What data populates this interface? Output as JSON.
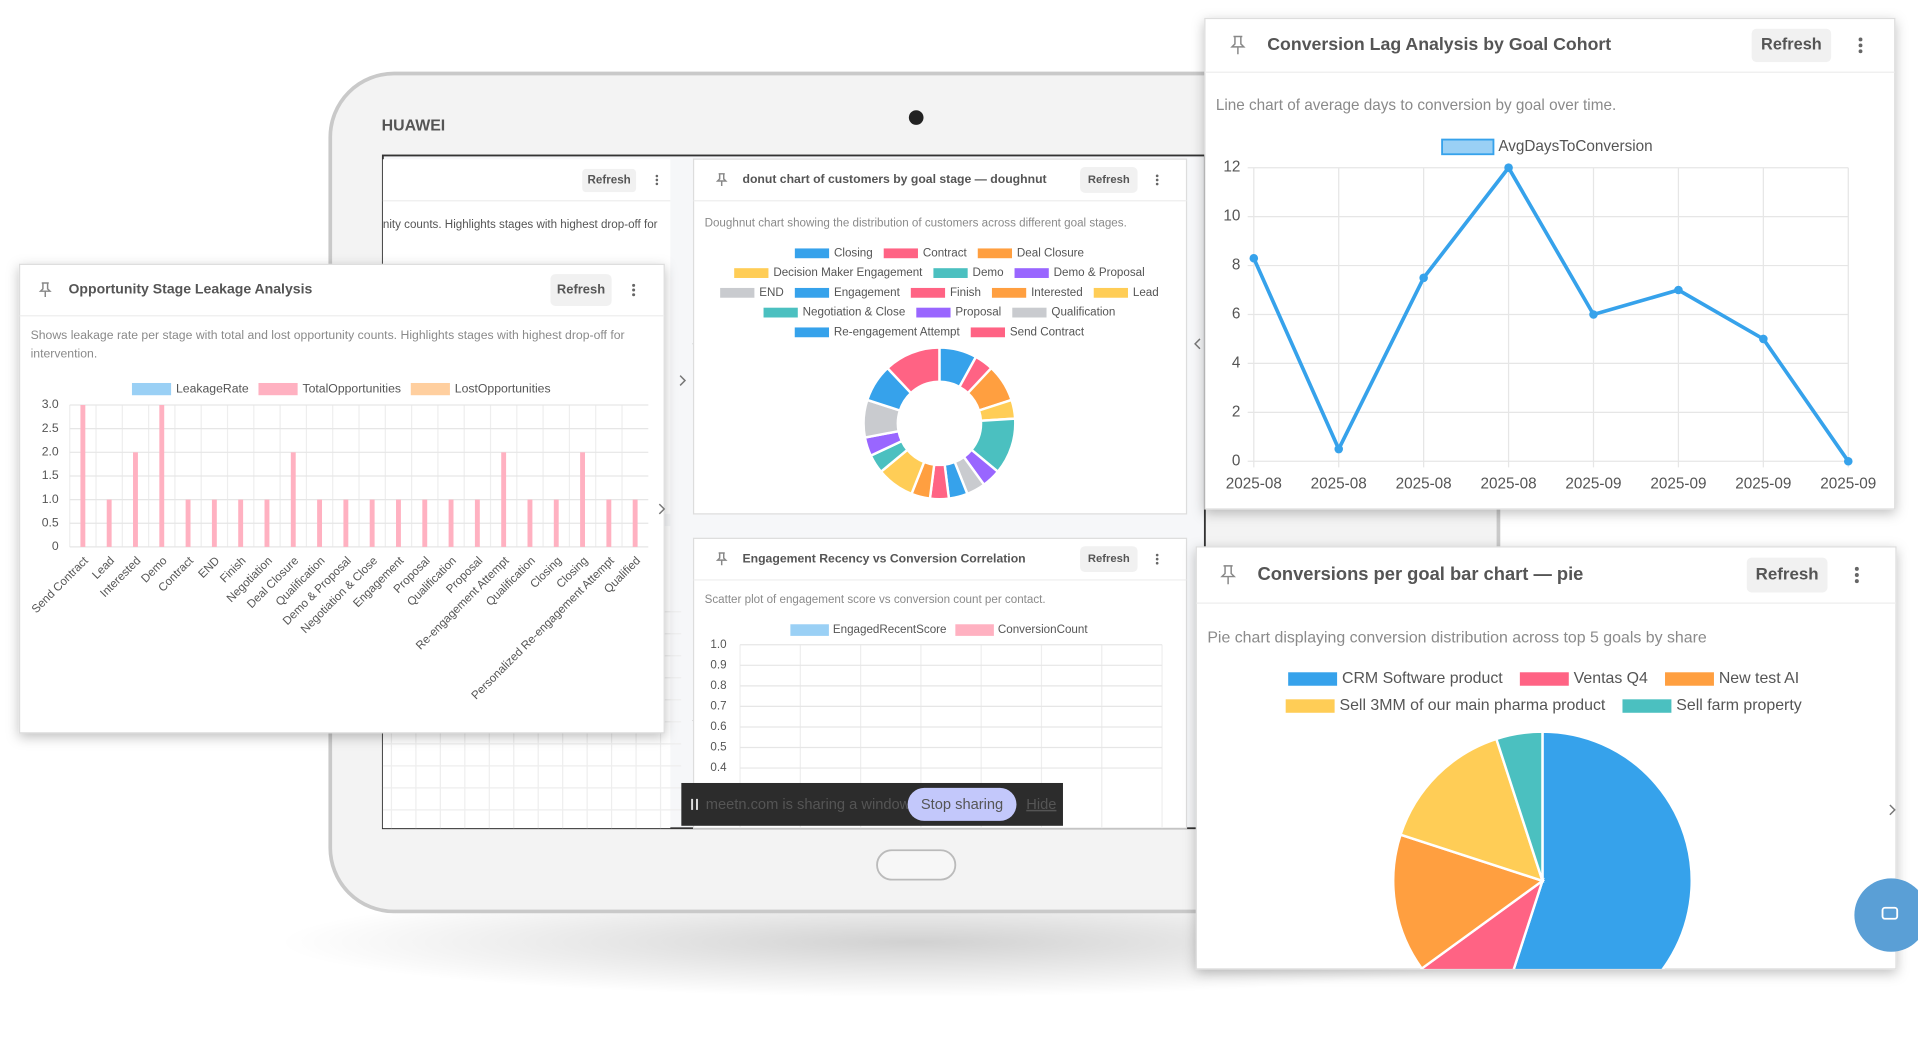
{
  "ui": {
    "brand": "HUAWEI",
    "back_panel_text": "nity counts. Highlights stages with highest drop-off for",
    "back_panel_button": "Refresh",
    "sharing_text": "meetn.com is sharing a window.",
    "stop_sharing": "Stop sharing",
    "hide": "Hide"
  },
  "chart_data": [
    {
      "type": "bar",
      "title": "Opportunity Stage Leakage Analysis",
      "button": "Refresh",
      "subtitle": "Shows leakage rate per stage with total and lost opportunity counts. Highlights stages with highest drop-off for intervention.",
      "categories": [
        "Send Contract",
        "Lead",
        "Interested",
        "Demo",
        "Contract",
        "END",
        "Finish",
        "Negotiation",
        "Deal Closure",
        "Qualification",
        "Demo & Proposal",
        "Negotiation & Close",
        "Engagement",
        "Proposal",
        "Qualification",
        "Proposal",
        "Re-engagement Attempt",
        "Qualification",
        "Closing",
        "Closing",
        "Personalized Re-engagement Attempt",
        "Qualified"
      ],
      "series": [
        {
          "name": "LeakageRate",
          "color": "#9ad0f5",
          "values": [
            0,
            0,
            0,
            0,
            0,
            0,
            0,
            0,
            0,
            0,
            0,
            0,
            0,
            0,
            0,
            0,
            0,
            0,
            0,
            0,
            0,
            0
          ]
        },
        {
          "name": "TotalOpportunities",
          "color": "#ffb1c1",
          "values": [
            3,
            1,
            2,
            3,
            1,
            1,
            1,
            1,
            2,
            1,
            1,
            1,
            1,
            1,
            1,
            1,
            2,
            1,
            1,
            2,
            1,
            1
          ]
        },
        {
          "name": "LostOpportunities",
          "color": "#ffcf9f",
          "values": [
            0,
            0,
            0,
            0,
            0,
            0,
            0,
            0,
            0,
            0,
            0,
            0,
            0,
            0,
            0,
            0,
            0,
            0,
            0,
            0,
            0,
            0
          ]
        }
      ],
      "ylim": [
        0,
        3
      ],
      "yticks": [
        0,
        0.5,
        {
          "value": 1,
          "label": "1.0"
        },
        1.5,
        {
          "value": 2,
          "label": "2.0"
        },
        2.5,
        {
          "value": 3,
          "label": "3.0"
        }
      ],
      "grid": true
    },
    {
      "type": "doughnut",
      "title": "donut chart of customers by goal stage — doughnut",
      "button": "Refresh",
      "subtitle": "Doughnut chart showing the distribution of customers across different goal stages.",
      "categories": [
        "Closing",
        "Contract",
        "Deal Closure",
        "Decision Maker Engagement",
        "Demo",
        "Demo & Proposal",
        "END",
        "Engagement",
        "Finish",
        "Interested",
        "Lead",
        "Negotiation & Close",
        "Proposal",
        "Qualification",
        "Re-engagement Attempt",
        "Send Contract"
      ],
      "values": [
        2,
        1,
        2,
        1,
        3,
        1,
        1,
        1,
        1,
        1,
        2,
        1,
        1,
        2,
        2,
        3
      ],
      "colors": [
        "#36a2eb",
        "#ff6384",
        "#ff9f40",
        "#ffcd56",
        "#4bc0c0",
        "#9966ff",
        "#c9cbcf",
        "#36a2eb",
        "#ff6384",
        "#ff9f40",
        "#ffcd56",
        "#4bc0c0",
        "#9966ff",
        "#c9cbcf",
        "#36a2eb",
        "#ff6384"
      ]
    },
    {
      "type": "scatter",
      "title": "Engagement Recency vs Conversion Correlation",
      "button": "Refresh",
      "subtitle": "Scatter plot of engagement score vs conversion count per contact.",
      "series": [
        {
          "name": "EngagedRecentScore",
          "color": "#9ad0f5",
          "values": []
        },
        {
          "name": "ConversionCount",
          "color": "#ffb1c1",
          "values": []
        }
      ],
      "ylim": [
        0,
        1
      ],
      "yticks": [
        {
          "value": 1,
          "label": "1.0"
        },
        0.9,
        0.8,
        0.7,
        0.6,
        0.5,
        0.4
      ],
      "grid": true
    },
    {
      "type": "line",
      "title": "Conversion Lag Analysis by Goal Cohort",
      "button": "Refresh",
      "subtitle": "Line chart of average days to conversion by goal over time.",
      "categories": [
        "2025-08",
        "2025-08",
        "2025-08",
        "2025-08",
        "2025-09",
        "2025-09",
        "2025-09",
        "2025-09"
      ],
      "series": [
        {
          "name": "AvgDaysToConversion",
          "color": "#36a2eb",
          "values": [
            8.3,
            0.5,
            7.5,
            12,
            6,
            7,
            5,
            0
          ]
        }
      ],
      "ylim": [
        0,
        12
      ],
      "yticks": [
        0,
        2,
        4,
        6,
        8,
        10,
        12
      ],
      "grid": true
    },
    {
      "type": "pie",
      "title": "Conversions per goal bar chart — pie",
      "button": "Refresh",
      "subtitle": "Pie chart displaying conversion distribution across top 5 goals by share",
      "categories": [
        "CRM Software product",
        "Ventas Q4",
        "New test AI",
        "Sell 3MM of our main pharma product",
        "Sell farm property"
      ],
      "values": [
        11,
        2,
        3,
        3,
        1
      ],
      "colors": [
        "#36a2eb",
        "#ff6384",
        "#ff9f40",
        "#ffcd56",
        "#4bc0c0"
      ]
    }
  ]
}
